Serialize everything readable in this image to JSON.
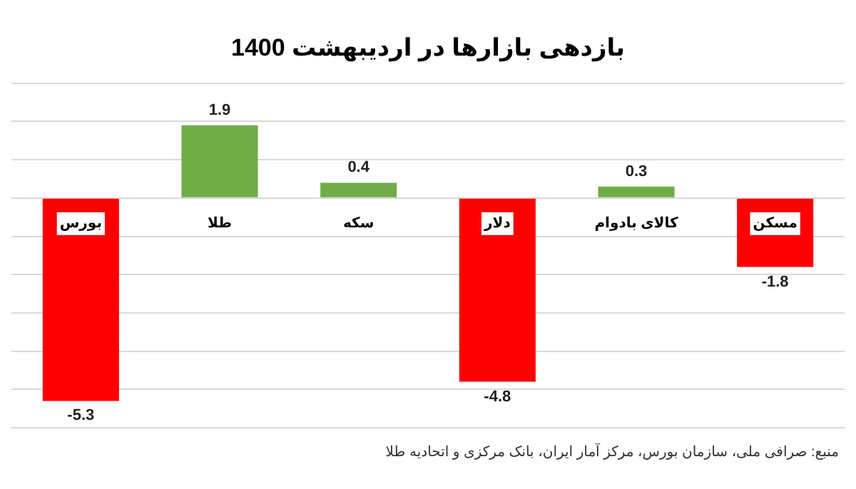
{
  "chart_data": {
    "type": "bar",
    "title": "بازدهی بازارها در اردیبهشت 1400",
    "categories": [
      "بورس",
      "طلا",
      "سکه",
      "دلار",
      "کالای بادوام",
      "مسکن"
    ],
    "values": [
      -5.3,
      1.9,
      0.4,
      -4.8,
      0.3,
      -1.8
    ],
    "colors": [
      "#ff0000",
      "#70ad47",
      "#70ad47",
      "#ff0000",
      "#70ad47",
      "#ff0000"
    ],
    "ylim": [
      -6,
      3
    ],
    "yticks": [
      {
        "value": -6,
        "label": null
      },
      {
        "value": -5,
        "label": null
      },
      {
        "value": -4,
        "label": null
      },
      {
        "value": -3,
        "label": null
      },
      {
        "value": -2,
        "label": null
      },
      {
        "value": -1,
        "label": null
      },
      {
        "value": 0,
        "label": null
      },
      {
        "value": 1,
        "label": null
      },
      {
        "value": 2,
        "label": null
      },
      {
        "value": 3,
        "label": null
      }
    ],
    "grid": "y",
    "data_labels": true,
    "tick_labels": "x",
    "annotations": [
      "منبع: صرافی ملی، سازمان بورس، مرکز آمار ایران، بانک مرکزی و اتحادیه طلا"
    ]
  }
}
